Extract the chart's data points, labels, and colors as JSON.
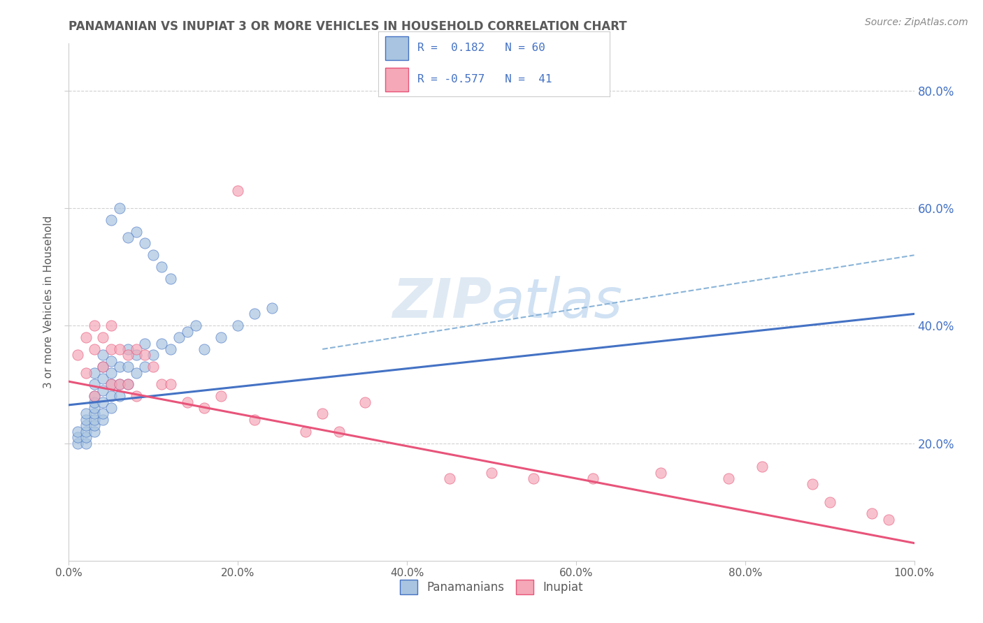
{
  "title": "PANAMANIAN VS INUPIAT 3 OR MORE VEHICLES IN HOUSEHOLD CORRELATION CHART",
  "source_text": "Source: ZipAtlas.com",
  "ylabel": "3 or more Vehicles in Household",
  "xlim": [
    0.0,
    1.0
  ],
  "ylim": [
    0.0,
    0.88
  ],
  "x_tick_labels": [
    "0.0%",
    "20.0%",
    "40.0%",
    "60.0%",
    "80.0%",
    "100.0%"
  ],
  "x_tick_vals": [
    0.0,
    0.2,
    0.4,
    0.6,
    0.8,
    1.0
  ],
  "y_tick_labels": [
    "20.0%",
    "40.0%",
    "60.0%",
    "80.0%"
  ],
  "y_tick_vals": [
    0.2,
    0.4,
    0.6,
    0.8
  ],
  "panamanian_color": "#a8c4e0",
  "inupiat_color": "#f4a8b8",
  "line_color_pan": "#4472c4",
  "line_color_inu": "#e8547a",
  "dashed_line_color": "#8ab4d8",
  "background_color": "#ffffff",
  "watermark": "ZIPatlas",
  "title_color": "#5a5a5a",
  "legend_text_color": "#4472c4",
  "pan_line_x0": 0.0,
  "pan_line_y0": 0.265,
  "pan_line_x1": 1.0,
  "pan_line_y1": 0.42,
  "inu_line_x0": 0.0,
  "inu_line_y0": 0.305,
  "inu_line_x1": 1.0,
  "inu_line_y1": 0.03,
  "dash_line_x0": 0.3,
  "dash_line_y0": 0.36,
  "dash_line_x1": 1.0,
  "dash_line_y1": 0.52,
  "panamanian_points_x": [
    0.01,
    0.01,
    0.01,
    0.02,
    0.02,
    0.02,
    0.02,
    0.02,
    0.02,
    0.03,
    0.03,
    0.03,
    0.03,
    0.03,
    0.03,
    0.03,
    0.03,
    0.03,
    0.04,
    0.04,
    0.04,
    0.04,
    0.04,
    0.04,
    0.04,
    0.05,
    0.05,
    0.05,
    0.05,
    0.05,
    0.06,
    0.06,
    0.06,
    0.07,
    0.07,
    0.07,
    0.08,
    0.08,
    0.09,
    0.09,
    0.1,
    0.11,
    0.12,
    0.13,
    0.14,
    0.15,
    0.16,
    0.18,
    0.2,
    0.22,
    0.24,
    0.08,
    0.05,
    0.06,
    0.07,
    0.09,
    0.1,
    0.11,
    0.12
  ],
  "panamanian_points_y": [
    0.2,
    0.21,
    0.22,
    0.2,
    0.21,
    0.22,
    0.23,
    0.24,
    0.25,
    0.22,
    0.23,
    0.24,
    0.25,
    0.26,
    0.27,
    0.28,
    0.3,
    0.32,
    0.24,
    0.25,
    0.27,
    0.29,
    0.31,
    0.33,
    0.35,
    0.26,
    0.28,
    0.3,
    0.32,
    0.34,
    0.28,
    0.3,
    0.33,
    0.3,
    0.33,
    0.36,
    0.32,
    0.35,
    0.33,
    0.37,
    0.35,
    0.37,
    0.36,
    0.38,
    0.39,
    0.4,
    0.36,
    0.38,
    0.4,
    0.42,
    0.43,
    0.56,
    0.58,
    0.6,
    0.55,
    0.54,
    0.52,
    0.5,
    0.48
  ],
  "inupiat_points_x": [
    0.01,
    0.02,
    0.02,
    0.03,
    0.03,
    0.03,
    0.04,
    0.04,
    0.05,
    0.05,
    0.05,
    0.06,
    0.06,
    0.07,
    0.07,
    0.08,
    0.08,
    0.09,
    0.1,
    0.11,
    0.12,
    0.14,
    0.16,
    0.18,
    0.2,
    0.22,
    0.28,
    0.3,
    0.32,
    0.35,
    0.45,
    0.5,
    0.55,
    0.62,
    0.7,
    0.78,
    0.82,
    0.88,
    0.9,
    0.95,
    0.97
  ],
  "inupiat_points_y": [
    0.35,
    0.38,
    0.32,
    0.4,
    0.36,
    0.28,
    0.38,
    0.33,
    0.4,
    0.36,
    0.3,
    0.36,
    0.3,
    0.35,
    0.3,
    0.36,
    0.28,
    0.35,
    0.33,
    0.3,
    0.3,
    0.27,
    0.26,
    0.28,
    0.63,
    0.24,
    0.22,
    0.25,
    0.22,
    0.27,
    0.14,
    0.15,
    0.14,
    0.14,
    0.15,
    0.14,
    0.16,
    0.13,
    0.1,
    0.08,
    0.07
  ]
}
